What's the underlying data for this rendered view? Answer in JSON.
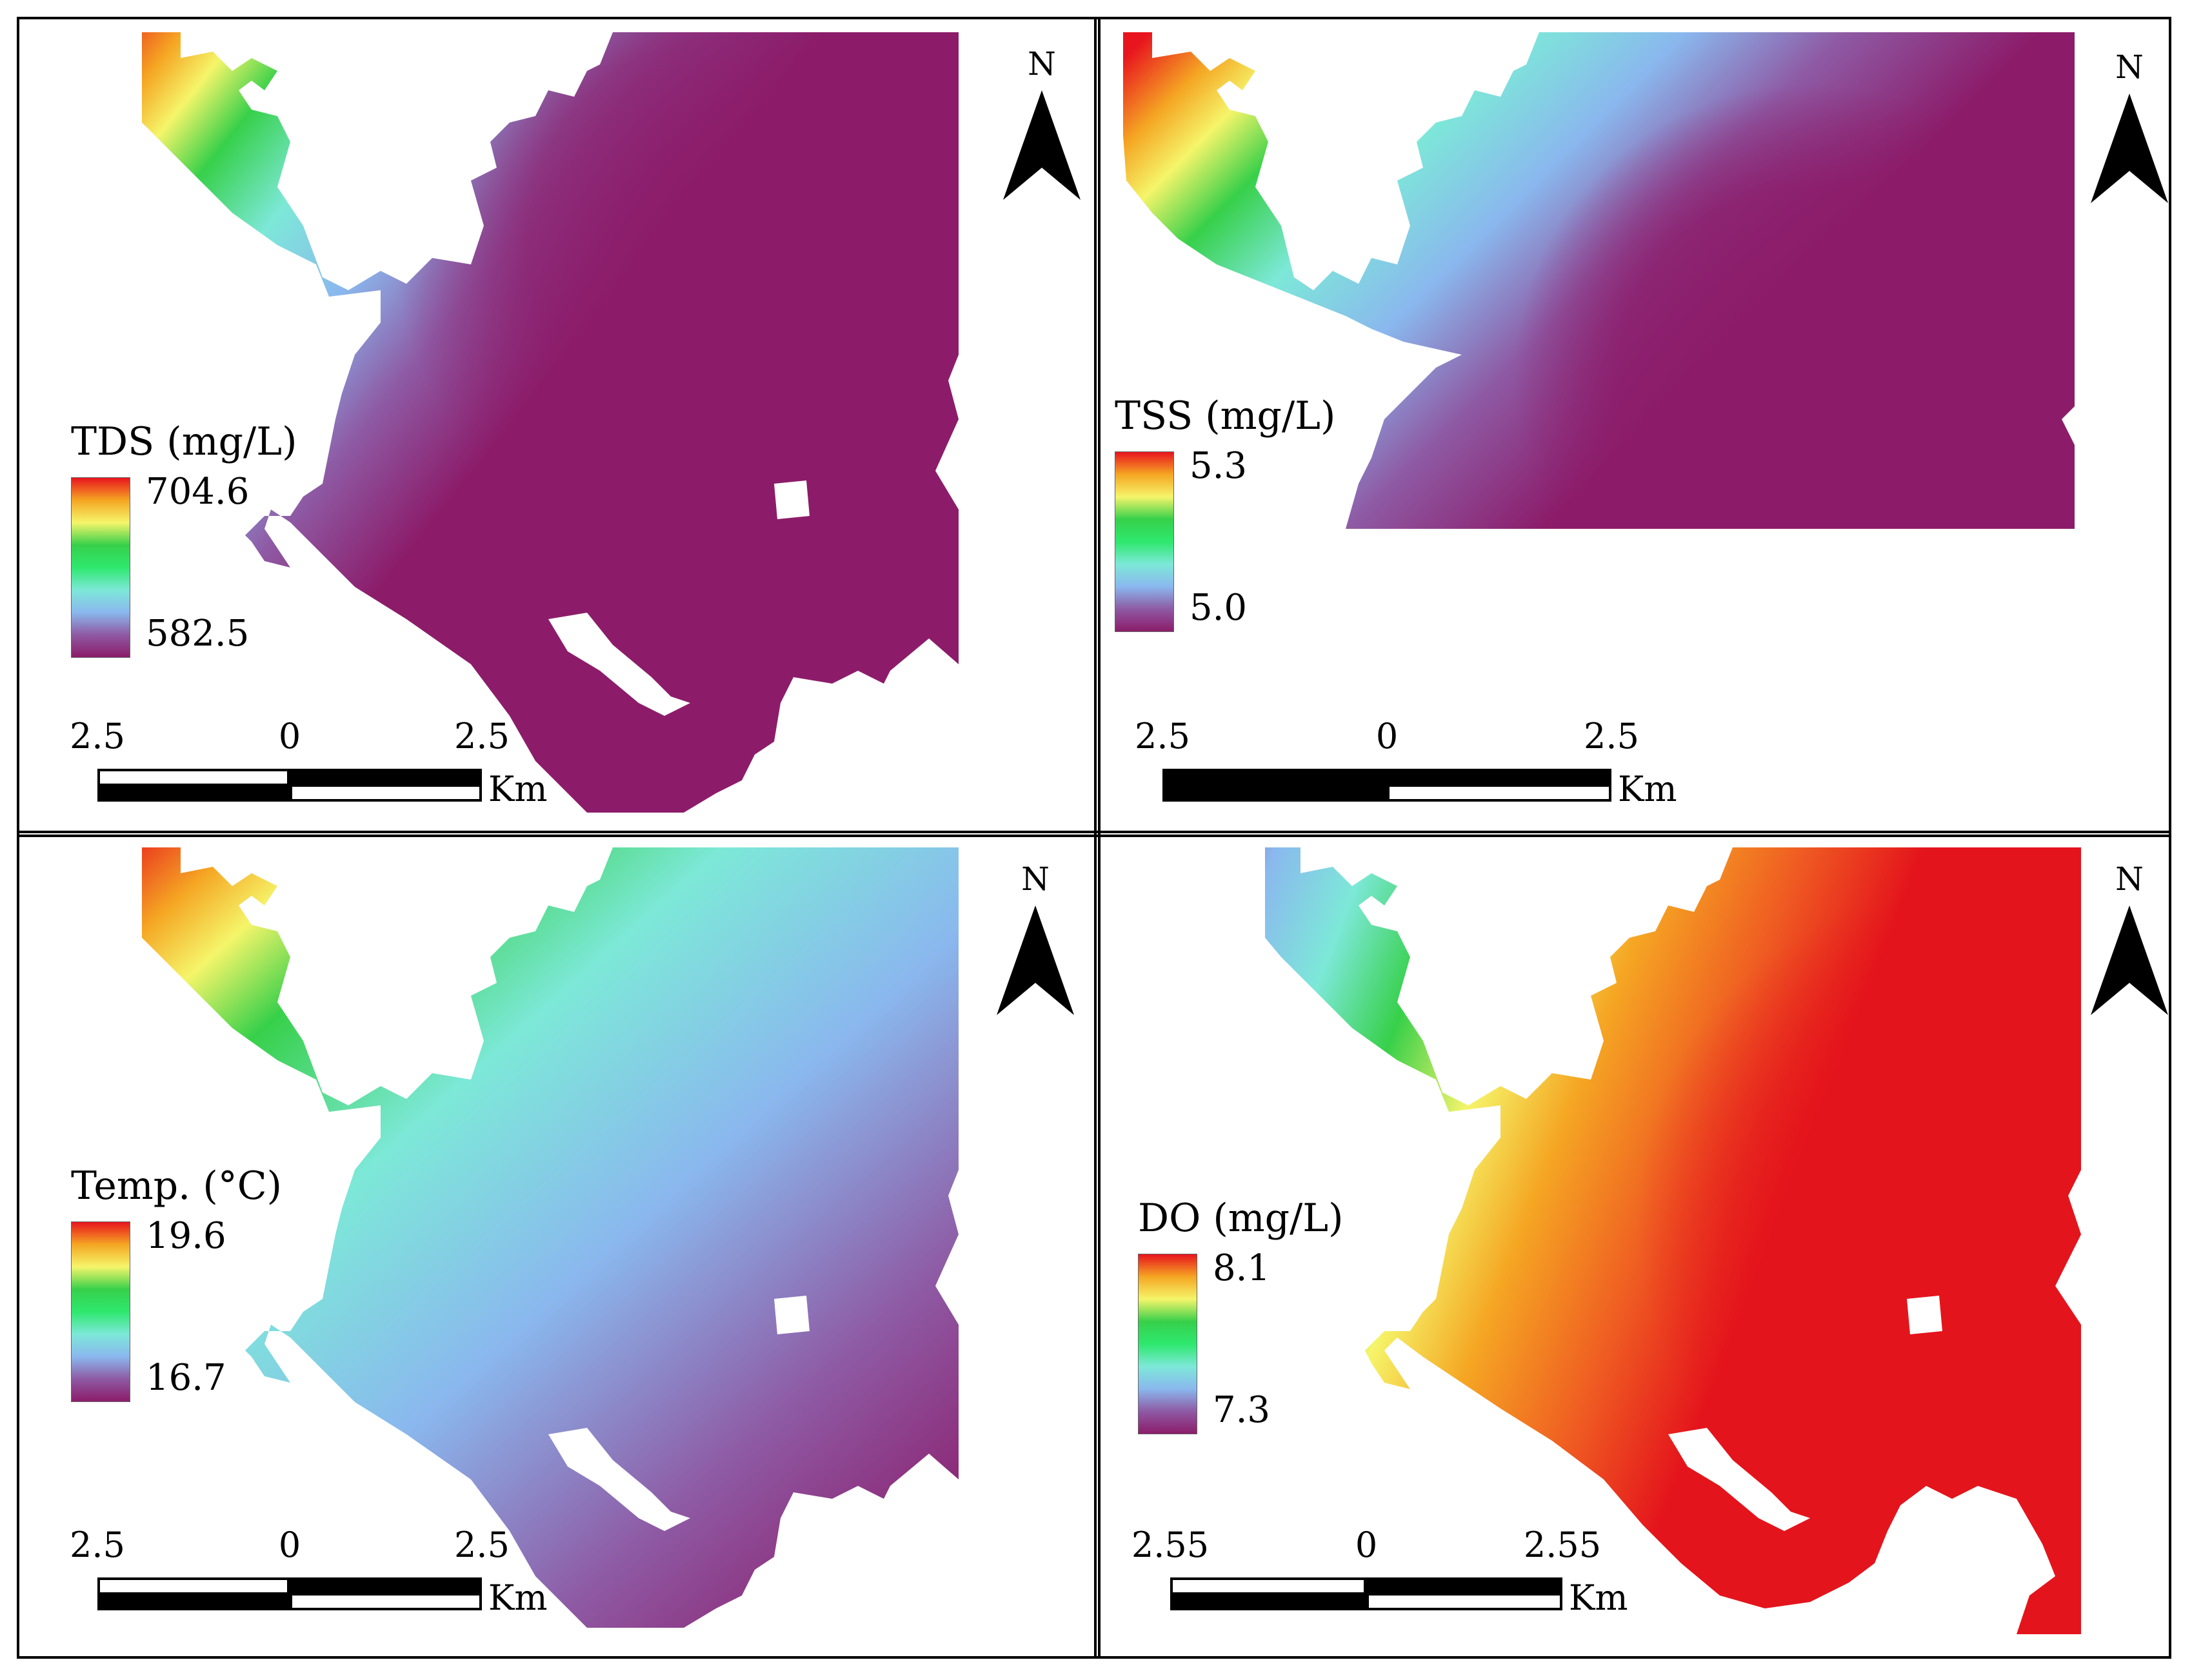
{
  "panels": [
    {
      "id": "tds",
      "legend": {
        "title": "TDS (mg/L)",
        "max": "704.6",
        "min": "582.5"
      },
      "north_label": "N",
      "scale": {
        "left": "2.5",
        "mid": "0",
        "right": "2.5",
        "unit": "Km"
      }
    },
    {
      "id": "tss",
      "legend": {
        "title": "TSS (mg/L)",
        "max": "5.3",
        "min": "5.0"
      },
      "north_label": "N",
      "scale": {
        "left": "2.5",
        "mid": "0",
        "right": "2.5",
        "unit": "Km"
      }
    },
    {
      "id": "temp",
      "legend": {
        "title": "Temp. (°C)",
        "max": "19.6",
        "min": "16.7"
      },
      "north_label": "N",
      "scale": {
        "left": "2.5",
        "mid": "0",
        "right": "2.5",
        "unit": "Km"
      }
    },
    {
      "id": "do",
      "legend": {
        "title": "DO (mg/L)",
        "max": "8.1",
        "min": "7.3"
      },
      "north_label": "N",
      "scale": {
        "left": "2.55",
        "mid": "0",
        "right": "2.55",
        "unit": "Km"
      }
    }
  ],
  "colors": {
    "ramp": [
      "#e8141e",
      "#f5a623",
      "#f5f56a",
      "#37d04a",
      "#2ee86e",
      "#7de8d8",
      "#8ab8ee",
      "#8e5aa4",
      "#8c1c6a"
    ],
    "purple": "#8c1c6a",
    "red": "#e4141c",
    "background": "#ffffff"
  }
}
